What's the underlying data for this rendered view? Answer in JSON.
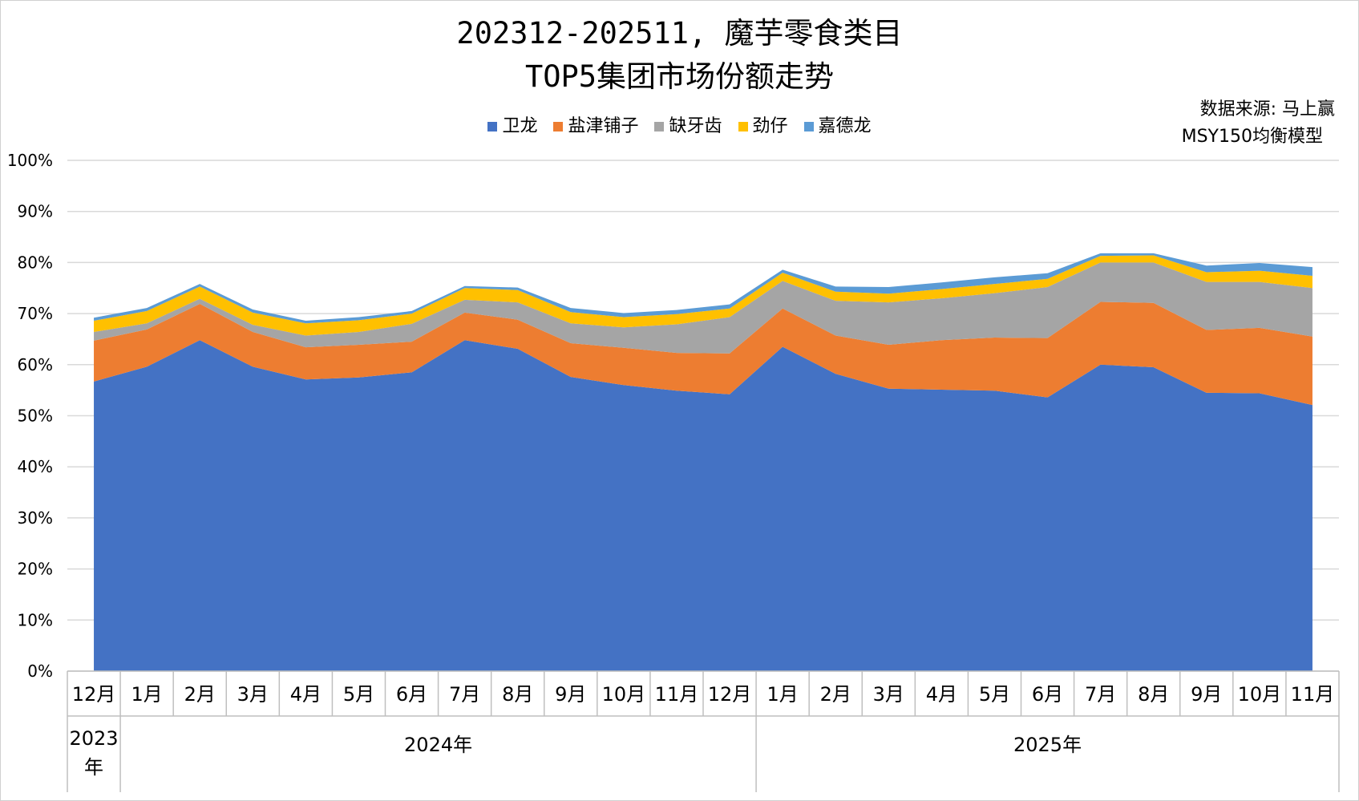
{
  "title_line1": "202312-202511, 魔芋零食类目",
  "title_line2": "TOP5集团市场份额走势",
  "source_line1": "数据来源: 马上赢",
  "source_line2": "MSY150均衡模型",
  "chart_data": {
    "type": "area",
    "stacked": true,
    "categories": [
      "12月",
      "1月",
      "2月",
      "3月",
      "4月",
      "5月",
      "6月",
      "7月",
      "8月",
      "9月",
      "10月",
      "11月",
      "12月",
      "1月",
      "2月",
      "3月",
      "4月",
      "5月",
      "6月",
      "7月",
      "8月",
      "9月",
      "10月",
      "11月"
    ],
    "category_groups": [
      {
        "label": "2023年",
        "count": 1
      },
      {
        "label": "2024年",
        "count": 12
      },
      {
        "label": "2025年",
        "count": 11
      }
    ],
    "y_ticks": [
      "0%",
      "10%",
      "20%",
      "30%",
      "40%",
      "50%",
      "60%",
      "70%",
      "80%",
      "90%",
      "100%"
    ],
    "ylim": [
      0,
      100
    ],
    "grid": true,
    "legend_position": "top",
    "series": [
      {
        "name": "卫龙",
        "color": "#4472C4",
        "values": [
          56.7,
          59.6,
          64.8,
          59.6,
          57.1,
          57.5,
          58.5,
          64.8,
          63.1,
          57.6,
          56.0,
          54.9,
          54.2,
          63.5,
          58.2,
          55.3,
          55.1,
          54.9,
          53.6,
          60.0,
          59.5,
          54.5,
          54.4,
          52.1
        ]
      },
      {
        "name": "盐津铺子",
        "color": "#ED7D31",
        "values": [
          8.0,
          7.3,
          7.1,
          6.8,
          6.3,
          6.4,
          6.0,
          5.4,
          5.7,
          6.6,
          7.3,
          7.4,
          8.0,
          7.5,
          7.5,
          8.6,
          9.7,
          10.4,
          11.6,
          12.3,
          12.6,
          12.3,
          12.8,
          13.4
        ]
      },
      {
        "name": "缺牙齿",
        "color": "#A5A5A5",
        "values": [
          1.7,
          1.2,
          1.0,
          1.4,
          2.3,
          2.5,
          3.5,
          2.5,
          3.4,
          3.9,
          4.0,
          5.6,
          7.1,
          5.4,
          6.8,
          8.3,
          8.2,
          8.7,
          10.0,
          7.7,
          7.9,
          9.4,
          9.0,
          9.5
        ]
      },
      {
        "name": "劲仔",
        "color": "#FFC000",
        "values": [
          2.2,
          2.4,
          2.4,
          2.4,
          2.4,
          2.3,
          2.0,
          2.3,
          2.4,
          2.2,
          2.0,
          2.0,
          1.7,
          1.6,
          1.8,
          1.7,
          1.8,
          1.8,
          1.6,
          1.3,
          1.4,
          1.9,
          2.2,
          2.4
        ]
      },
      {
        "name": "嘉德龙",
        "color": "#5B9BD5",
        "values": [
          0.6,
          0.6,
          0.5,
          0.6,
          0.5,
          0.6,
          0.5,
          0.4,
          0.5,
          0.8,
          0.8,
          0.8,
          0.8,
          0.6,
          1.0,
          1.3,
          1.3,
          1.3,
          1.1,
          0.5,
          0.4,
          1.3,
          1.5,
          1.7
        ]
      }
    ]
  }
}
